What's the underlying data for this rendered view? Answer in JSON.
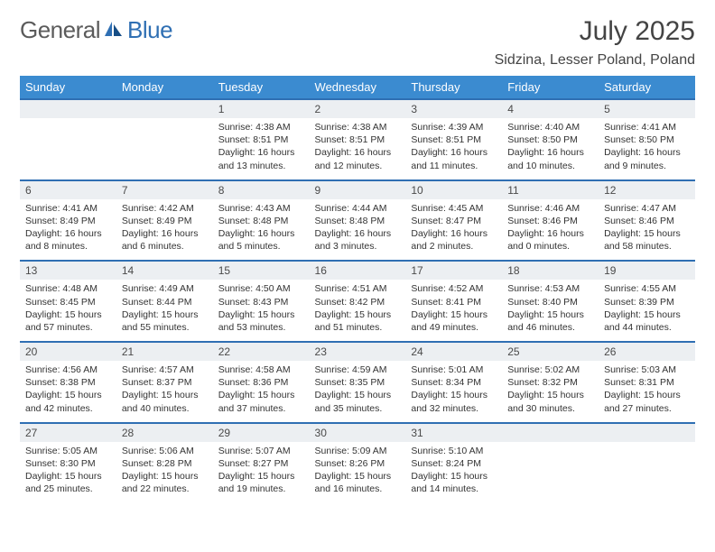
{
  "brand": {
    "word1": "General",
    "word2": "Blue"
  },
  "title": "July 2025",
  "location": "Sidzina, Lesser Poland, Poland",
  "colors": {
    "header_bg": "#3b8bd0",
    "header_text": "#ffffff",
    "row_border": "#2f6fb3",
    "daynum_bg": "#eceff2",
    "text": "#333333",
    "title_text": "#444444",
    "logo_gray": "#5b5b5b",
    "logo_blue": "#2f6fb3",
    "background": "#ffffff"
  },
  "typography": {
    "title_fontsize": 30,
    "location_fontsize": 16,
    "logo_fontsize": 26,
    "dayheader_fontsize": 13,
    "daynum_fontsize": 12,
    "body_fontsize": 10.5
  },
  "day_headers": [
    "Sunday",
    "Monday",
    "Tuesday",
    "Wednesday",
    "Thursday",
    "Friday",
    "Saturday"
  ],
  "weeks": [
    [
      {
        "num": "",
        "lines": []
      },
      {
        "num": "",
        "lines": []
      },
      {
        "num": "1",
        "lines": [
          "Sunrise: 4:38 AM",
          "Sunset: 8:51 PM",
          "Daylight: 16 hours",
          "and 13 minutes."
        ]
      },
      {
        "num": "2",
        "lines": [
          "Sunrise: 4:38 AM",
          "Sunset: 8:51 PM",
          "Daylight: 16 hours",
          "and 12 minutes."
        ]
      },
      {
        "num": "3",
        "lines": [
          "Sunrise: 4:39 AM",
          "Sunset: 8:51 PM",
          "Daylight: 16 hours",
          "and 11 minutes."
        ]
      },
      {
        "num": "4",
        "lines": [
          "Sunrise: 4:40 AM",
          "Sunset: 8:50 PM",
          "Daylight: 16 hours",
          "and 10 minutes."
        ]
      },
      {
        "num": "5",
        "lines": [
          "Sunrise: 4:41 AM",
          "Sunset: 8:50 PM",
          "Daylight: 16 hours",
          "and 9 minutes."
        ]
      }
    ],
    [
      {
        "num": "6",
        "lines": [
          "Sunrise: 4:41 AM",
          "Sunset: 8:49 PM",
          "Daylight: 16 hours",
          "and 8 minutes."
        ]
      },
      {
        "num": "7",
        "lines": [
          "Sunrise: 4:42 AM",
          "Sunset: 8:49 PM",
          "Daylight: 16 hours",
          "and 6 minutes."
        ]
      },
      {
        "num": "8",
        "lines": [
          "Sunrise: 4:43 AM",
          "Sunset: 8:48 PM",
          "Daylight: 16 hours",
          "and 5 minutes."
        ]
      },
      {
        "num": "9",
        "lines": [
          "Sunrise: 4:44 AM",
          "Sunset: 8:48 PM",
          "Daylight: 16 hours",
          "and 3 minutes."
        ]
      },
      {
        "num": "10",
        "lines": [
          "Sunrise: 4:45 AM",
          "Sunset: 8:47 PM",
          "Daylight: 16 hours",
          "and 2 minutes."
        ]
      },
      {
        "num": "11",
        "lines": [
          "Sunrise: 4:46 AM",
          "Sunset: 8:46 PM",
          "Daylight: 16 hours",
          "and 0 minutes."
        ]
      },
      {
        "num": "12",
        "lines": [
          "Sunrise: 4:47 AM",
          "Sunset: 8:46 PM",
          "Daylight: 15 hours",
          "and 58 minutes."
        ]
      }
    ],
    [
      {
        "num": "13",
        "lines": [
          "Sunrise: 4:48 AM",
          "Sunset: 8:45 PM",
          "Daylight: 15 hours",
          "and 57 minutes."
        ]
      },
      {
        "num": "14",
        "lines": [
          "Sunrise: 4:49 AM",
          "Sunset: 8:44 PM",
          "Daylight: 15 hours",
          "and 55 minutes."
        ]
      },
      {
        "num": "15",
        "lines": [
          "Sunrise: 4:50 AM",
          "Sunset: 8:43 PM",
          "Daylight: 15 hours",
          "and 53 minutes."
        ]
      },
      {
        "num": "16",
        "lines": [
          "Sunrise: 4:51 AM",
          "Sunset: 8:42 PM",
          "Daylight: 15 hours",
          "and 51 minutes."
        ]
      },
      {
        "num": "17",
        "lines": [
          "Sunrise: 4:52 AM",
          "Sunset: 8:41 PM",
          "Daylight: 15 hours",
          "and 49 minutes."
        ]
      },
      {
        "num": "18",
        "lines": [
          "Sunrise: 4:53 AM",
          "Sunset: 8:40 PM",
          "Daylight: 15 hours",
          "and 46 minutes."
        ]
      },
      {
        "num": "19",
        "lines": [
          "Sunrise: 4:55 AM",
          "Sunset: 8:39 PM",
          "Daylight: 15 hours",
          "and 44 minutes."
        ]
      }
    ],
    [
      {
        "num": "20",
        "lines": [
          "Sunrise: 4:56 AM",
          "Sunset: 8:38 PM",
          "Daylight: 15 hours",
          "and 42 minutes."
        ]
      },
      {
        "num": "21",
        "lines": [
          "Sunrise: 4:57 AM",
          "Sunset: 8:37 PM",
          "Daylight: 15 hours",
          "and 40 minutes."
        ]
      },
      {
        "num": "22",
        "lines": [
          "Sunrise: 4:58 AM",
          "Sunset: 8:36 PM",
          "Daylight: 15 hours",
          "and 37 minutes."
        ]
      },
      {
        "num": "23",
        "lines": [
          "Sunrise: 4:59 AM",
          "Sunset: 8:35 PM",
          "Daylight: 15 hours",
          "and 35 minutes."
        ]
      },
      {
        "num": "24",
        "lines": [
          "Sunrise: 5:01 AM",
          "Sunset: 8:34 PM",
          "Daylight: 15 hours",
          "and 32 minutes."
        ]
      },
      {
        "num": "25",
        "lines": [
          "Sunrise: 5:02 AM",
          "Sunset: 8:32 PM",
          "Daylight: 15 hours",
          "and 30 minutes."
        ]
      },
      {
        "num": "26",
        "lines": [
          "Sunrise: 5:03 AM",
          "Sunset: 8:31 PM",
          "Daylight: 15 hours",
          "and 27 minutes."
        ]
      }
    ],
    [
      {
        "num": "27",
        "lines": [
          "Sunrise: 5:05 AM",
          "Sunset: 8:30 PM",
          "Daylight: 15 hours",
          "and 25 minutes."
        ]
      },
      {
        "num": "28",
        "lines": [
          "Sunrise: 5:06 AM",
          "Sunset: 8:28 PM",
          "Daylight: 15 hours",
          "and 22 minutes."
        ]
      },
      {
        "num": "29",
        "lines": [
          "Sunrise: 5:07 AM",
          "Sunset: 8:27 PM",
          "Daylight: 15 hours",
          "and 19 minutes."
        ]
      },
      {
        "num": "30",
        "lines": [
          "Sunrise: 5:09 AM",
          "Sunset: 8:26 PM",
          "Daylight: 15 hours",
          "and 16 minutes."
        ]
      },
      {
        "num": "31",
        "lines": [
          "Sunrise: 5:10 AM",
          "Sunset: 8:24 PM",
          "Daylight: 15 hours",
          "and 14 minutes."
        ]
      },
      {
        "num": "",
        "lines": []
      },
      {
        "num": "",
        "lines": []
      }
    ]
  ]
}
